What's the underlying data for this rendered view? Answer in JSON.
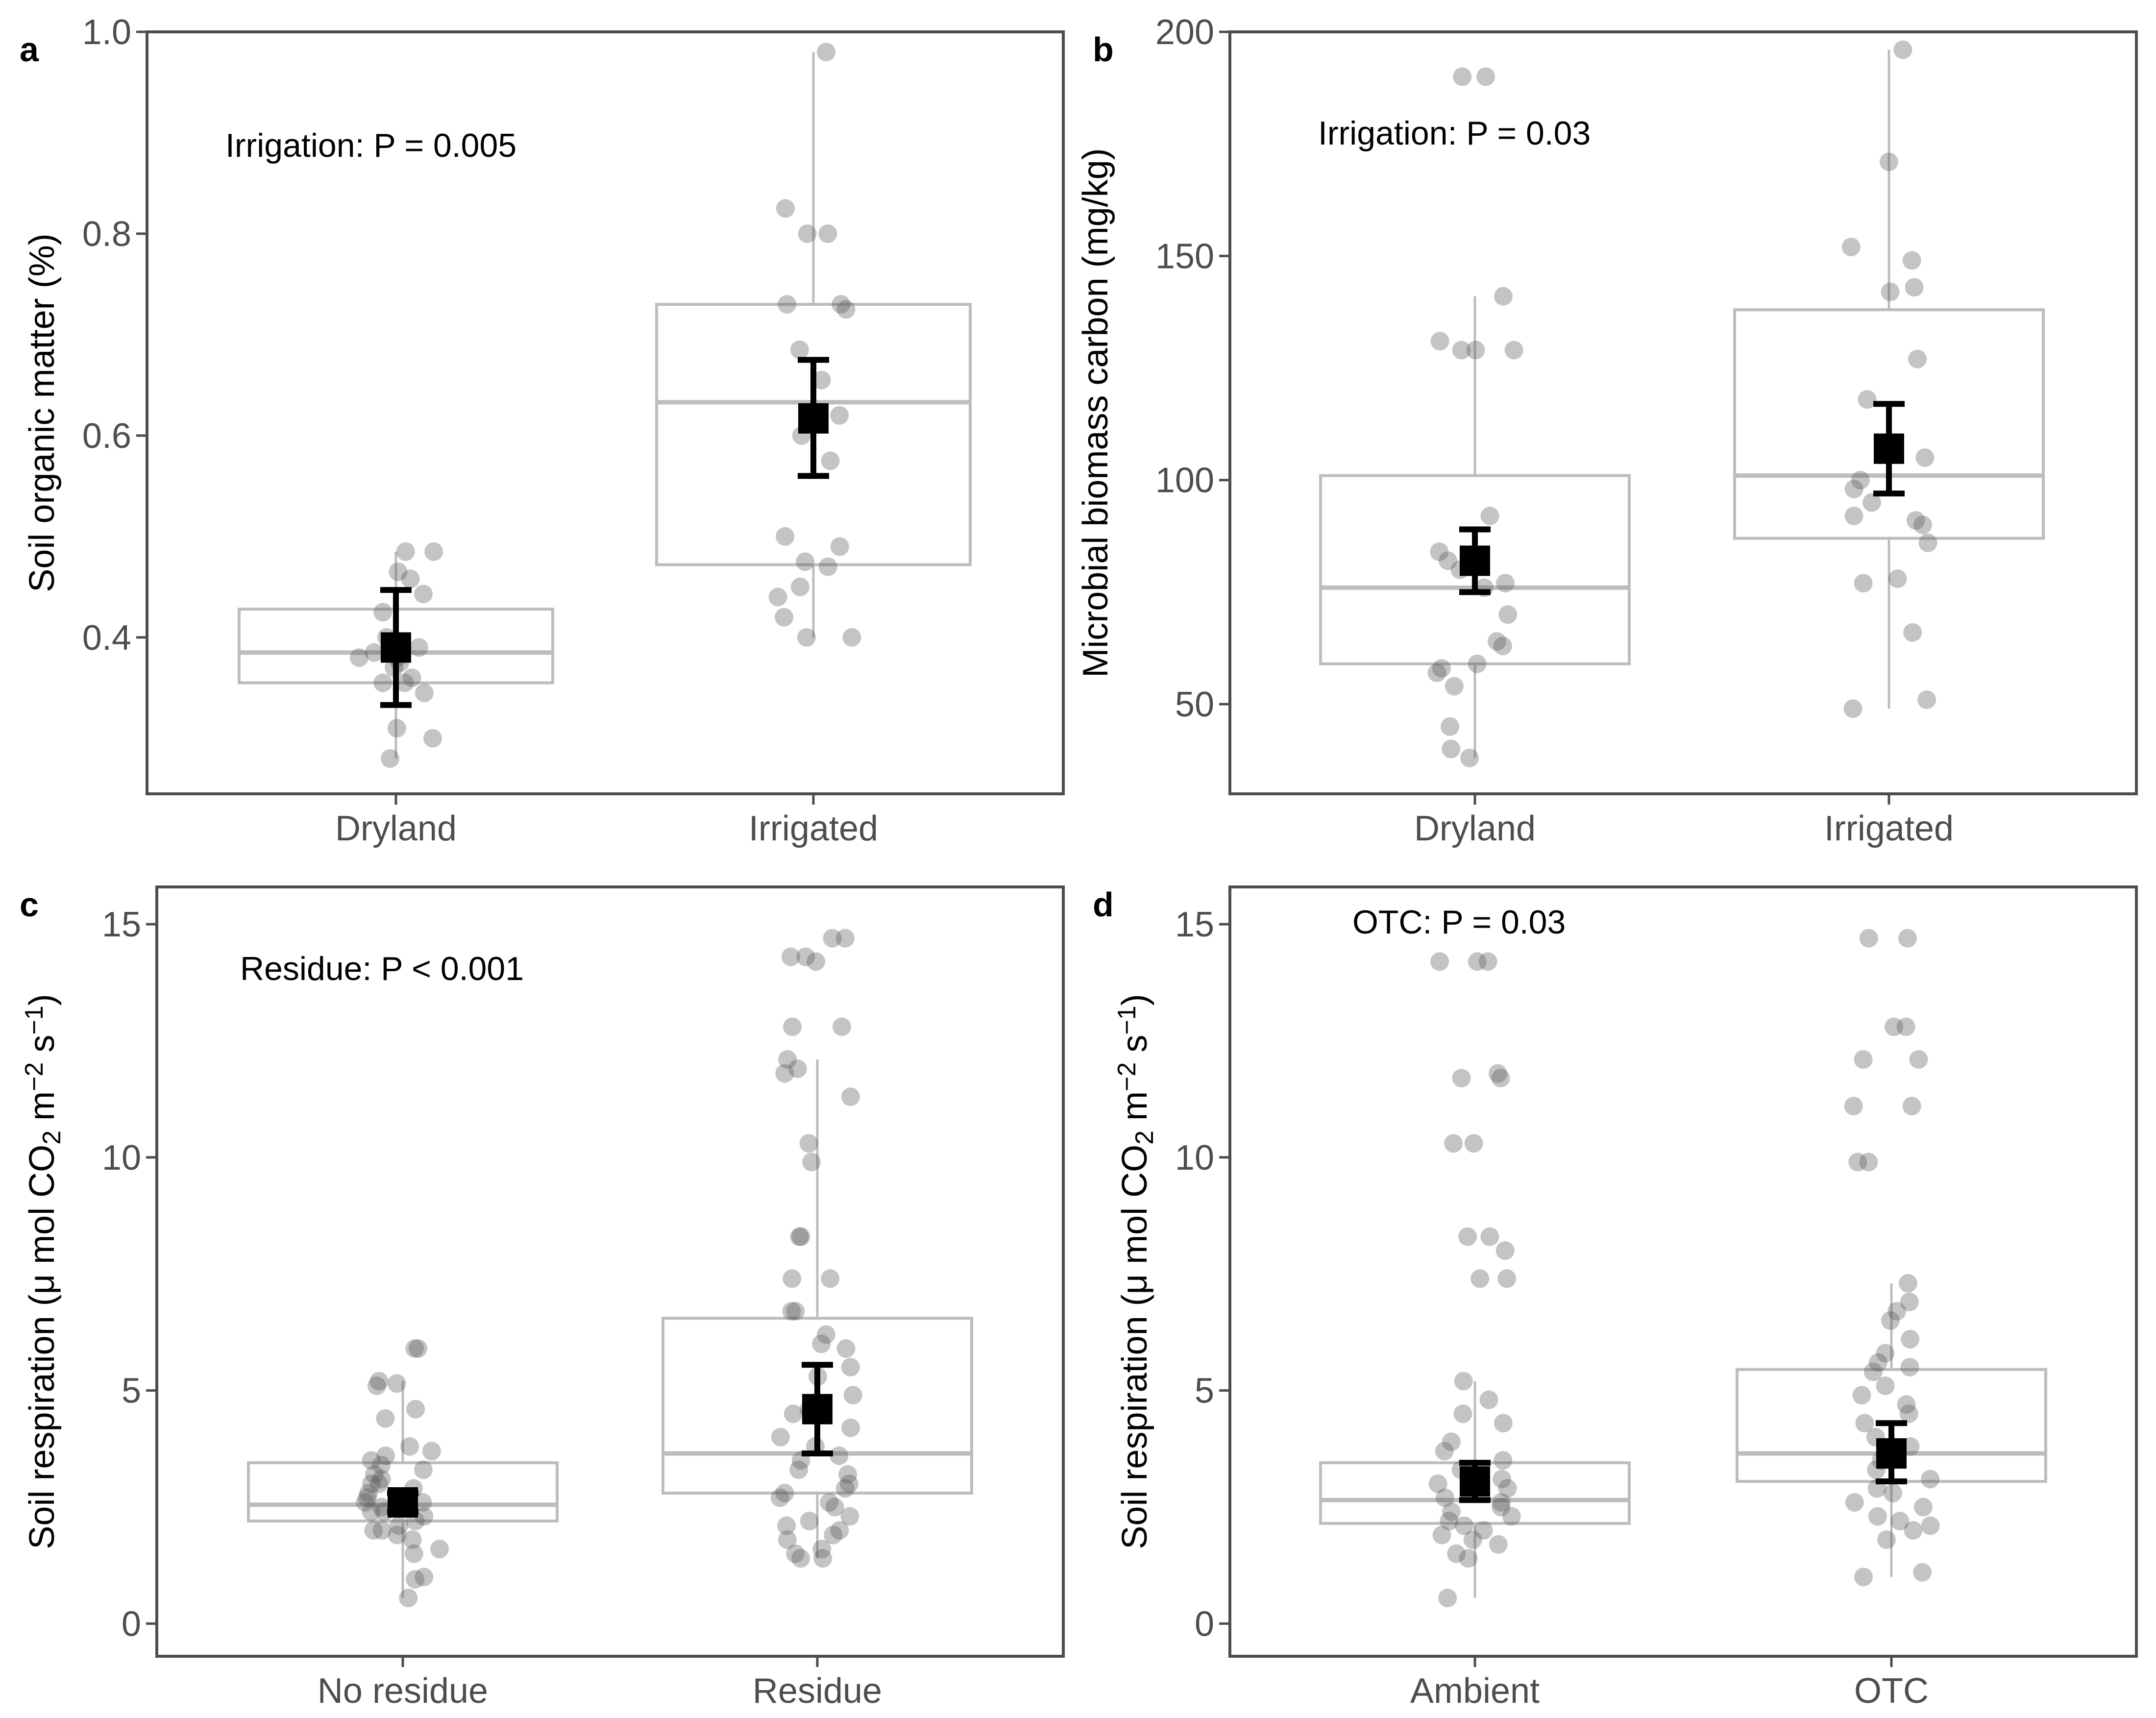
{
  "chart_data": [
    {
      "type": "box",
      "panel": "a",
      "ylabel": "Soil organic matter (%)",
      "ylim": [
        0.245,
        1.0
      ],
      "yticks": [
        0.4,
        0.6,
        0.8,
        1.0
      ],
      "ytick_labels": [
        "0.4",
        "0.6",
        "0.8",
        "1.0"
      ],
      "categories": [
        "Dryland",
        "Irrigated"
      ],
      "annotation": "Irrigation: P = 0.005",
      "groups": [
        {
          "name": "Dryland",
          "q1": 0.355,
          "median": 0.385,
          "q3": 0.428,
          "whisker_low": 0.28,
          "whisker_high": 0.485,
          "mean": 0.39,
          "err_low": 0.333,
          "err_high": 0.447,
          "points": [
            0.485,
            0.485,
            0.465,
            0.458,
            0.443,
            0.425,
            0.4,
            0.39,
            0.385,
            0.38,
            0.38,
            0.375,
            0.37,
            0.36,
            0.355,
            0.355,
            0.345,
            0.31,
            0.3,
            0.28
          ]
        },
        {
          "name": "Irrigated",
          "q1": 0.472,
          "median": 0.633,
          "q3": 0.73,
          "whisker_low": 0.4,
          "whisker_high": 0.98,
          "mean": 0.617,
          "err_low": 0.56,
          "err_high": 0.675,
          "points": [
            0.98,
            0.825,
            0.8,
            0.8,
            0.73,
            0.73,
            0.725,
            0.685,
            0.655,
            0.62,
            0.6,
            0.575,
            0.5,
            0.49,
            0.475,
            0.47,
            0.45,
            0.44,
            0.42,
            0.4,
            0.4
          ]
        }
      ]
    },
    {
      "type": "box",
      "panel": "b",
      "ylabel": "Microbial biomass carbon (mg/kg)",
      "ylim": [
        30,
        200
      ],
      "yticks": [
        50,
        100,
        150,
        200
      ],
      "ytick_labels": [
        "50",
        "100",
        "150",
        "200"
      ],
      "categories": [
        "Dryland",
        "Irrigated"
      ],
      "annotation": "Irrigation: P = 0.03",
      "groups": [
        {
          "name": "Dryland",
          "q1": 59,
          "median": 76,
          "q3": 101,
          "whisker_low": 38,
          "whisker_high": 141,
          "mean": 82,
          "err_low": 75,
          "err_high": 89,
          "points": [
            190,
            190,
            141,
            131,
            129,
            129,
            129,
            92,
            84,
            82,
            80,
            77,
            76,
            70,
            64,
            63,
            59,
            58,
            57,
            54,
            45,
            40,
            38
          ]
        },
        {
          "name": "Irrigated",
          "q1": 87,
          "median": 101,
          "q3": 138,
          "whisker_low": 49,
          "whisker_high": 196,
          "mean": 107,
          "err_low": 97,
          "err_high": 117,
          "points": [
            196,
            171,
            152,
            149,
            143,
            142,
            127,
            118,
            107,
            105,
            100,
            98,
            95,
            92,
            91,
            90,
            86,
            78,
            77,
            66,
            51,
            49
          ]
        }
      ]
    },
    {
      "type": "box",
      "panel": "c",
      "ylabel": "Soil respiration (μ mol CO₂ m⁻² s⁻¹)",
      "ylim": [
        -0.7,
        15.8
      ],
      "yticks": [
        0,
        5,
        10,
        15
      ],
      "ytick_labels": [
        "0",
        "5",
        "10",
        "15"
      ],
      "categories": [
        "No residue",
        "Residue"
      ],
      "annotation": "Residue: P < 0.001",
      "groups": [
        {
          "name": "No residue",
          "q1": 2.2,
          "median": 2.55,
          "q3": 3.45,
          "whisker_low": 0.55,
          "whisker_high": 5.2,
          "mean": 2.6,
          "err_low": 2.4,
          "err_high": 2.8,
          "points": [
            5.9,
            5.9,
            5.2,
            5.15,
            5.1,
            4.6,
            4.4,
            3.8,
            3.7,
            3.6,
            3.5,
            3.4,
            3.3,
            3.2,
            3.1,
            3.0,
            3.0,
            2.9,
            2.8,
            2.7,
            2.6,
            2.6,
            2.5,
            2.4,
            2.4,
            2.3,
            2.2,
            2.1,
            2.0,
            2.0,
            1.9,
            1.8,
            1.6,
            1.5,
            1.0,
            0.95,
            0.55
          ]
        },
        {
          "name": "Residue",
          "q1": 2.8,
          "median": 3.65,
          "q3": 6.55,
          "whisker_low": 1.4,
          "whisker_high": 12.1,
          "mean": 4.6,
          "err_low": 3.65,
          "err_high": 5.55,
          "points": [
            14.7,
            14.7,
            14.3,
            14.3,
            14.2,
            12.8,
            12.8,
            12.1,
            11.9,
            11.8,
            11.3,
            10.3,
            9.9,
            8.3,
            8.3,
            7.4,
            7.4,
            6.7,
            6.7,
            6.2,
            6.0,
            5.9,
            5.5,
            5.3,
            4.9,
            4.6,
            4.5,
            4.2,
            4.0,
            3.8,
            3.6,
            3.5,
            3.3,
            3.2,
            3.0,
            2.9,
            2.8,
            2.7,
            2.6,
            2.5,
            2.3,
            2.2,
            2.1,
            2.0,
            1.9,
            1.8,
            1.6,
            1.5,
            1.4,
            1.4
          ]
        }
      ]
    },
    {
      "type": "box",
      "panel": "d",
      "ylabel": "Soil respiration (μ mol CO₂ m⁻² s⁻¹)",
      "ylim": [
        -0.7,
        15.8
      ],
      "yticks": [
        0,
        5,
        10,
        15
      ],
      "ytick_labels": [
        "0",
        "5",
        "10",
        "15"
      ],
      "categories": [
        "Ambient",
        "OTC"
      ],
      "annotation": "OTC: P = 0.03",
      "groups": [
        {
          "name": "Ambient",
          "q1": 2.15,
          "median": 2.65,
          "q3": 3.45,
          "whisker_low": 0.55,
          "whisker_high": 5.2,
          "mean": 3.05,
          "err_low": 2.65,
          "err_high": 3.45,
          "points": [
            14.2,
            14.2,
            14.2,
            11.8,
            11.7,
            11.7,
            10.3,
            10.3,
            8.3,
            8.3,
            8.0,
            7.4,
            7.4,
            5.2,
            4.8,
            4.5,
            4.3,
            3.9,
            3.7,
            3.5,
            3.3,
            3.1,
            3.0,
            2.9,
            2.8,
            2.7,
            2.6,
            2.5,
            2.4,
            2.3,
            2.2,
            2.1,
            2.0,
            1.9,
            1.8,
            1.7,
            1.5,
            1.4,
            0.55
          ]
        },
        {
          "name": "OTC",
          "q1": 3.05,
          "median": 3.65,
          "q3": 5.45,
          "whisker_low": 1.0,
          "whisker_high": 7.3,
          "mean": 3.65,
          "err_low": 3.05,
          "err_high": 4.3,
          "points": [
            14.7,
            14.7,
            12.8,
            12.8,
            12.1,
            12.1,
            11.1,
            11.1,
            9.9,
            9.9,
            7.3,
            6.9,
            6.7,
            6.5,
            6.1,
            5.8,
            5.6,
            5.5,
            5.4,
            5.1,
            4.9,
            4.7,
            4.5,
            4.3,
            4.0,
            3.8,
            3.5,
            3.3,
            3.1,
            2.9,
            2.8,
            2.6,
            2.5,
            2.3,
            2.2,
            2.1,
            2.0,
            1.8,
            1.1,
            1.0
          ]
        }
      ]
    }
  ]
}
